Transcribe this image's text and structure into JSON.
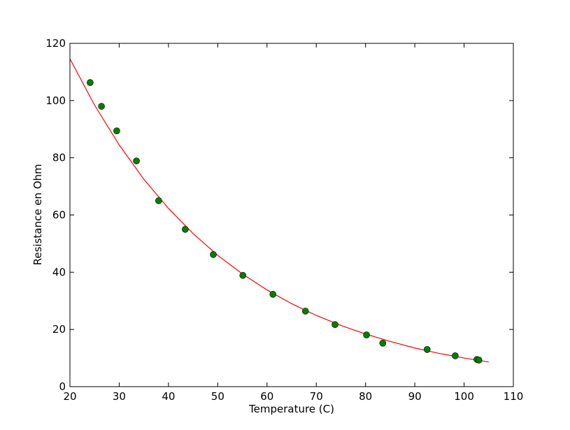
{
  "chart_data": {
    "type": "scatter",
    "x_label": "Temperature (C)",
    "y_label": "Resistance en Ohm",
    "xlim": [
      20,
      110
    ],
    "ylim": [
      0,
      120
    ],
    "xticks": [
      20,
      30,
      40,
      50,
      60,
      70,
      80,
      90,
      100,
      110
    ],
    "yticks": [
      0,
      20,
      40,
      60,
      80,
      100,
      120
    ],
    "grid": false,
    "series": [
      {
        "type": "line",
        "color": "#ff0000",
        "x": [
          20,
          25,
          30,
          35,
          40,
          45,
          50,
          55,
          60,
          65,
          70,
          75,
          80,
          85,
          90,
          95,
          100,
          105
        ],
        "values": [
          114.6,
          98.4,
          84.5,
          72.5,
          62.3,
          53.5,
          45.9,
          39.4,
          33.8,
          29.0,
          24.9,
          21.4,
          18.4,
          15.8,
          13.5,
          11.6,
          10.0,
          8.6
        ]
      },
      {
        "type": "scatter",
        "color": "#008000",
        "x": [
          24.1,
          26.4,
          29.5,
          33.5,
          38.0,
          43.4,
          49.1,
          55.1,
          61.2,
          67.8,
          73.8,
          80.2,
          83.5,
          92.5,
          98.2,
          102.6,
          103.0
        ],
        "values": [
          106.3,
          98.0,
          89.4,
          78.9,
          65.0,
          55.0,
          46.2,
          38.9,
          32.3,
          26.4,
          21.7,
          18.1,
          15.2,
          13.0,
          10.8,
          9.5,
          9.3
        ]
      }
    ]
  }
}
